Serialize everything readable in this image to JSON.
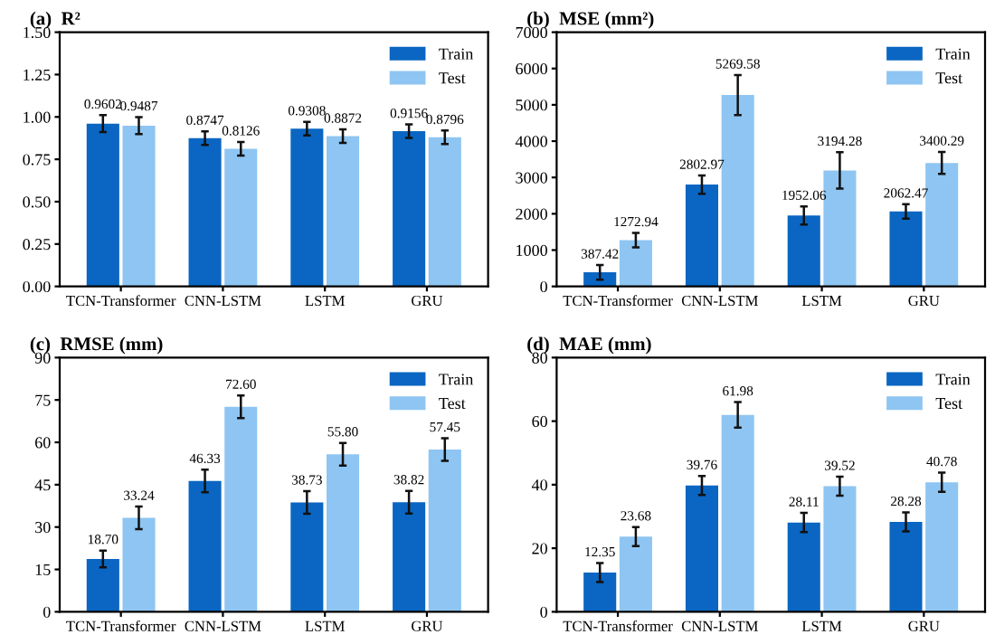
{
  "chart_data": [
    {
      "type": "bar",
      "title": "(a)  R²",
      "categories": [
        "TCN-Transformer",
        "CNN-LSTM",
        "LSTM",
        "GRU"
      ],
      "ylim": [
        0,
        1.5
      ],
      "yticks": [
        {
          "value": 0,
          "label": "0.00"
        },
        {
          "value": 0.25,
          "label": "0.25"
        },
        {
          "value": 0.5,
          "label": "0.50"
        },
        {
          "value": 0.75,
          "label": "0.75"
        },
        {
          "value": 1.0,
          "label": "1.00"
        },
        {
          "value": 1.25,
          "label": "1.25"
        },
        {
          "value": 1.5,
          "label": "1.50"
        }
      ],
      "legend": "top right",
      "grid": false,
      "series": [
        {
          "name": "Train",
          "color": "#0a66c2",
          "values": [
            0.9602,
            0.8747,
            0.9308,
            0.9156
          ],
          "value_labels": [
            "0.9602",
            "0.8747",
            "0.9308",
            "0.9156"
          ],
          "errors": [
            0.05,
            0.04,
            0.04,
            0.04
          ]
        },
        {
          "name": "Test",
          "color": "#8ec5f2",
          "values": [
            0.9487,
            0.8126,
            0.8872,
            0.8796
          ],
          "value_labels": [
            "0.9487",
            "0.8126",
            "0.8872",
            "0.8796"
          ],
          "errors": [
            0.05,
            0.04,
            0.04,
            0.04
          ]
        }
      ]
    },
    {
      "type": "bar",
      "title": "(b)  MSE (mm²)",
      "categories": [
        "TCN-Transformer",
        "CNN-LSTM",
        "LSTM",
        "GRU"
      ],
      "ylim": [
        0,
        7000
      ],
      "yticks": [
        0,
        1000,
        2000,
        3000,
        4000,
        5000,
        6000,
        7000
      ],
      "legend": "top right",
      "grid": false,
      "series": [
        {
          "name": "Train",
          "color": "#0a66c2",
          "values": [
            387.42,
            2802.97,
            1952.06,
            2062.47
          ],
          "value_labels": [
            "387.42",
            "2802.97",
            "1952.06",
            "2062.47"
          ],
          "errors": [
            200,
            250,
            250,
            200
          ]
        },
        {
          "name": "Test",
          "color": "#8ec5f2",
          "values": [
            1272.94,
            5269.58,
            3194.28,
            3400.29
          ],
          "value_labels": [
            "1272.94",
            "5269.58",
            "3194.28",
            "3400.29"
          ],
          "errors": [
            200,
            550,
            500,
            300
          ]
        }
      ]
    },
    {
      "type": "bar",
      "title": "(c)  RMSE (mm)",
      "categories": [
        "TCN-Transformer",
        "CNN-LSTM",
        "LSTM",
        "GRU"
      ],
      "ylim": [
        0,
        90
      ],
      "yticks": [
        0,
        15,
        30,
        45,
        60,
        75,
        90
      ],
      "legend": "top right",
      "grid": false,
      "series": [
        {
          "name": "Train",
          "color": "#0a66c2",
          "values": [
            18.7,
            46.33,
            38.73,
            38.82
          ],
          "value_labels": [
            "18.70",
            "46.33",
            "38.73",
            "38.82"
          ],
          "errors": [
            3,
            4,
            4,
            4
          ]
        },
        {
          "name": "Test",
          "color": "#8ec5f2",
          "values": [
            33.24,
            72.6,
            55.8,
            57.45
          ],
          "value_labels": [
            "33.24",
            "72.60",
            "55.80",
            "57.45"
          ],
          "errors": [
            4,
            4,
            4,
            4
          ]
        }
      ]
    },
    {
      "type": "bar",
      "title": "(d)  MAE (mm)",
      "categories": [
        "TCN-Transformer",
        "CNN-LSTM",
        "LSTM",
        "GRU"
      ],
      "ylim": [
        0,
        80
      ],
      "yticks": [
        0,
        20,
        40,
        60,
        80
      ],
      "legend": "top right",
      "grid": false,
      "series": [
        {
          "name": "Train",
          "color": "#0a66c2",
          "values": [
            12.35,
            39.76,
            28.11,
            28.28
          ],
          "value_labels": [
            "12.35",
            "39.76",
            "28.11",
            "28.28"
          ],
          "errors": [
            3,
            3,
            3,
            3
          ]
        },
        {
          "name": "Test",
          "color": "#8ec5f2",
          "values": [
            23.68,
            61.98,
            39.52,
            40.78
          ],
          "value_labels": [
            "23.68",
            "61.98",
            "39.52",
            "40.78"
          ],
          "errors": [
            3,
            4,
            3,
            3
          ]
        }
      ]
    }
  ]
}
